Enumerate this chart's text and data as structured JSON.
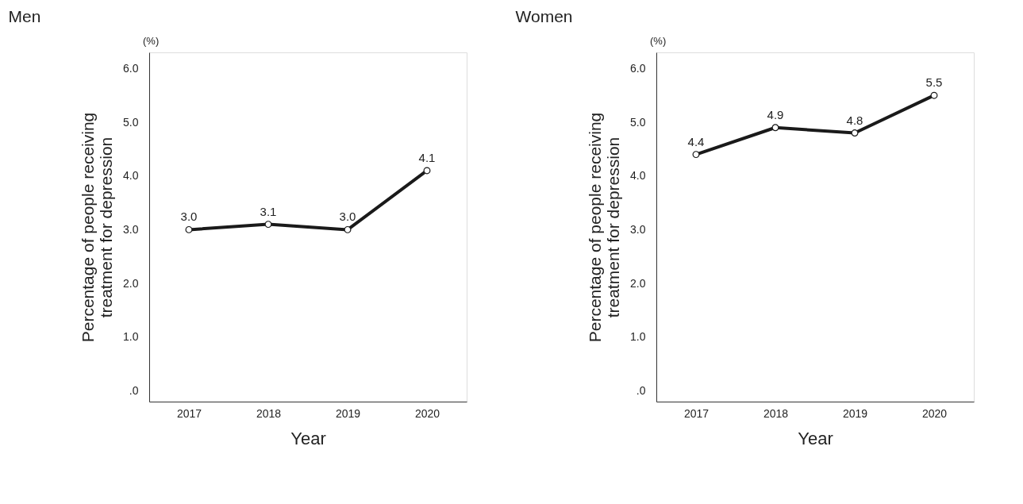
{
  "chart_data": [
    {
      "type": "line",
      "title": "Men",
      "xlabel": "Year",
      "ylabel": "Percentage of people receiving\ntreatment for depression",
      "annotations": [
        "(%)"
      ],
      "categories": [
        "2017",
        "2018",
        "2019",
        "2020"
      ],
      "series": [
        {
          "color": "#1a1a1a",
          "values": [
            3.0,
            3.1,
            3.0,
            4.1
          ],
          "value_labels": [
            "3.0",
            "3.1",
            "3.0",
            "4.1"
          ]
        }
      ],
      "ylim": [
        -0.2,
        6.3
      ],
      "yticks": [
        {
          "value": 0,
          "label": ".0"
        },
        {
          "value": 1,
          "label": "1.0"
        },
        {
          "value": 2,
          "label": "2.0"
        },
        {
          "value": 3,
          "label": "3.0"
        },
        {
          "value": 4,
          "label": "4.0"
        },
        {
          "value": 5,
          "label": "5.0"
        },
        {
          "value": 6,
          "label": "6.0"
        }
      ],
      "grid": false,
      "marker": "circle",
      "line_style": "solid"
    },
    {
      "type": "line",
      "title": "Women",
      "xlabel": "Year",
      "ylabel": "Percentage of people receiving\ntreatment for depression",
      "annotations": [
        "(%)"
      ],
      "categories": [
        "2017",
        "2018",
        "2019",
        "2020"
      ],
      "series": [
        {
          "color": "#1a1a1a",
          "values": [
            4.4,
            4.9,
            4.8,
            5.5
          ],
          "value_labels": [
            "4.4",
            "4.9",
            "4.8",
            "5.5"
          ]
        }
      ],
      "ylim": [
        -0.2,
        6.3
      ],
      "yticks": [
        {
          "value": 0,
          "label": ".0"
        },
        {
          "value": 1,
          "label": "1.0"
        },
        {
          "value": 2,
          "label": "2.0"
        },
        {
          "value": 3,
          "label": "3.0"
        },
        {
          "value": 4,
          "label": "4.0"
        },
        {
          "value": 5,
          "label": "5.0"
        },
        {
          "value": 6,
          "label": "6.0"
        }
      ],
      "grid": false,
      "marker": "circle",
      "line_style": "solid"
    }
  ]
}
